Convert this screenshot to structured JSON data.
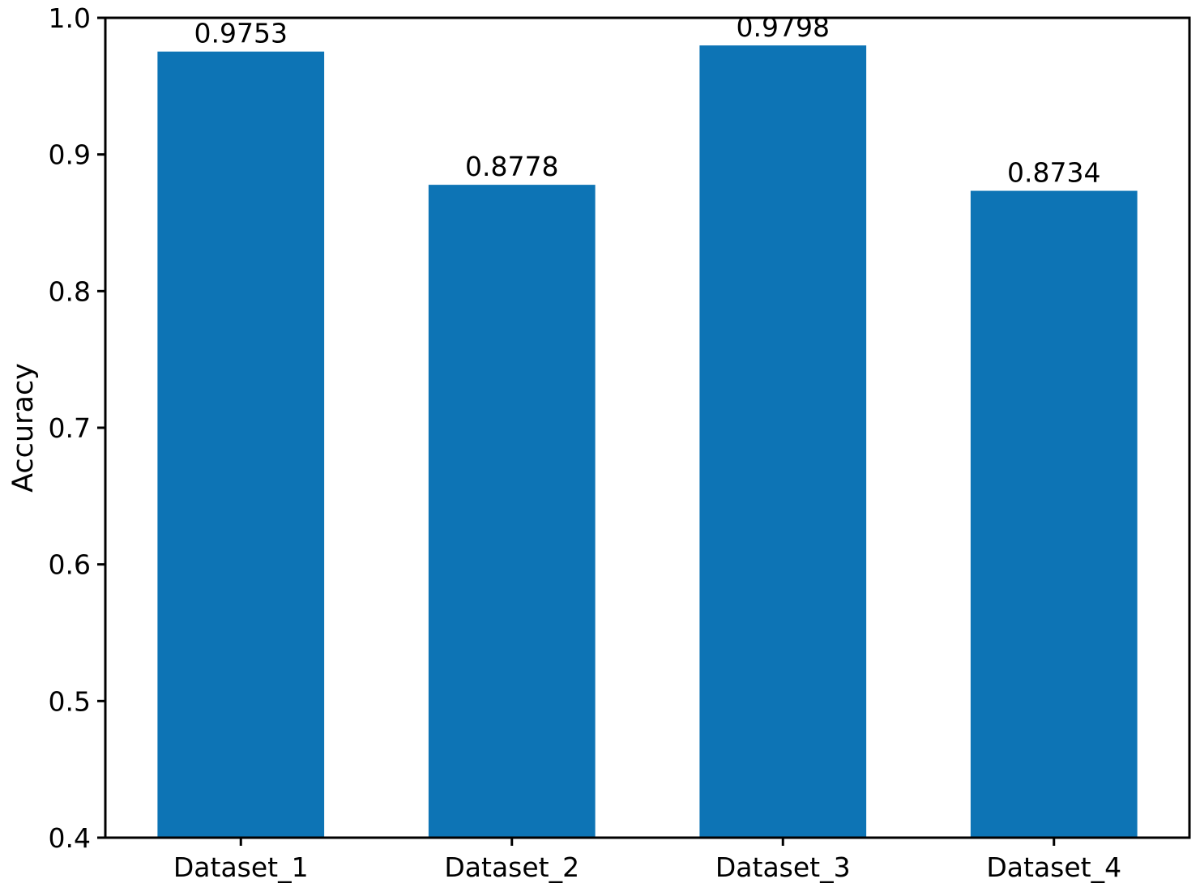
{
  "chart_data": {
    "type": "bar",
    "title": "",
    "xlabel": "",
    "ylabel": "Accuracy",
    "categories": [
      "Dataset_1",
      "Dataset_2",
      "Dataset_3",
      "Dataset_4"
    ],
    "values": [
      0.9753,
      0.8778,
      0.9798,
      0.8734
    ],
    "value_labels": [
      "0.9753",
      "0.8778",
      "0.9798",
      "0.8734"
    ],
    "ylim": [
      0.4,
      1.0
    ],
    "yticks": [
      0.4,
      0.5,
      0.6,
      0.7,
      0.8,
      0.9,
      1.0
    ],
    "ytick_labels": [
      "0.4",
      "0.5",
      "0.6",
      "0.7",
      "0.8",
      "0.9",
      "1.0"
    ],
    "grid": false,
    "legend": null,
    "bar_color": "#0d74b5",
    "frame_color": "#000000",
    "text_color": "#000000",
    "background_color": "#ffffff"
  }
}
